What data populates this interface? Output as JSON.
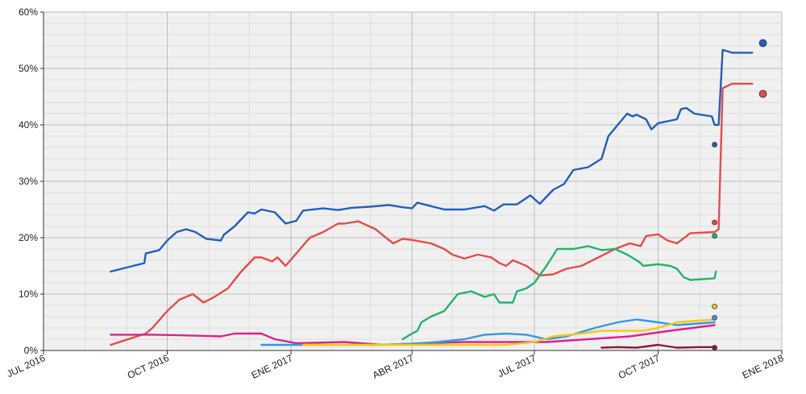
{
  "chart_data": {
    "type": "line",
    "title": "",
    "xlabel": "",
    "ylabel": "",
    "x_range": [
      "2016-07-01",
      "2018-01-01"
    ],
    "x_ticks": [
      {
        "date": "2016-07-01",
        "label": "JUL 2016"
      },
      {
        "date": "2016-10-01",
        "label": "OCT 2016"
      },
      {
        "date": "2017-01-01",
        "label": "ENE 2017"
      },
      {
        "date": "2017-04-01",
        "label": "ABR 2017"
      },
      {
        "date": "2017-07-01",
        "label": "JUL 2017"
      },
      {
        "date": "2017-10-01",
        "label": "OCT 2017"
      },
      {
        "date": "2018-01-01",
        "label": "ENE 2018"
      }
    ],
    "ylim": [
      0,
      60
    ],
    "y_ticks": [
      {
        "value": 0,
        "label": "0%"
      },
      {
        "value": 10,
        "label": "10%"
      },
      {
        "value": 20,
        "label": "20%"
      },
      {
        "value": 30,
        "label": "30%"
      },
      {
        "value": 40,
        "label": "40%"
      },
      {
        "value": 50,
        "label": "50%"
      },
      {
        "value": 60,
        "label": "60%"
      }
    ],
    "grid": true,
    "legend": "none",
    "series": [
      {
        "color": "#1f5fbf",
        "points": [
          [
            "2016-08-20",
            14
          ],
          [
            "2016-09-14",
            15.5
          ],
          [
            "2016-09-15",
            17.2
          ],
          [
            "2016-09-25",
            17.8
          ],
          [
            "2016-10-01",
            19.5
          ],
          [
            "2016-10-08",
            21
          ],
          [
            "2016-10-15",
            21.5
          ],
          [
            "2016-10-22",
            21
          ],
          [
            "2016-10-30",
            19.8
          ],
          [
            "2016-11-10",
            19.5
          ],
          [
            "2016-11-12",
            20.5
          ],
          [
            "2016-11-20",
            22
          ],
          [
            "2016-11-30",
            24.5
          ],
          [
            "2016-12-05",
            24.3
          ],
          [
            "2016-12-10",
            25
          ],
          [
            "2016-12-20",
            24.5
          ],
          [
            "2016-12-28",
            22.5
          ],
          [
            "2017-01-05",
            23
          ],
          [
            "2017-01-10",
            24.8
          ],
          [
            "2017-01-25",
            25.2
          ],
          [
            "2017-02-05",
            24.9
          ],
          [
            "2017-02-15",
            25.3
          ],
          [
            "2017-03-01",
            25.5
          ],
          [
            "2017-03-15",
            25.8
          ],
          [
            "2017-03-25",
            25.4
          ],
          [
            "2017-04-01",
            25.2
          ],
          [
            "2017-04-05",
            26.2
          ],
          [
            "2017-04-25",
            25
          ],
          [
            "2017-05-10",
            25
          ],
          [
            "2017-05-25",
            25.6
          ],
          [
            "2017-06-01",
            24.8
          ],
          [
            "2017-06-08",
            25.9
          ],
          [
            "2017-06-18",
            25.9
          ],
          [
            "2017-06-28",
            27.5
          ],
          [
            "2017-07-05",
            26
          ],
          [
            "2017-07-15",
            28.5
          ],
          [
            "2017-07-23",
            29.5
          ],
          [
            "2017-07-30",
            32
          ],
          [
            "2017-08-10",
            32.5
          ],
          [
            "2017-08-20",
            34
          ],
          [
            "2017-08-25",
            38
          ],
          [
            "2017-09-01",
            40
          ],
          [
            "2017-09-08",
            42
          ],
          [
            "2017-09-12",
            41.5
          ],
          [
            "2017-09-15",
            41.8
          ],
          [
            "2017-09-22",
            41
          ],
          [
            "2017-09-26",
            39.2
          ],
          [
            "2017-10-01",
            40.3
          ],
          [
            "2017-10-15",
            41
          ],
          [
            "2017-10-18",
            42.8
          ],
          [
            "2017-10-22",
            43
          ],
          [
            "2017-10-28",
            42
          ],
          [
            "2017-11-10",
            41.5
          ],
          [
            "2017-11-12",
            40
          ],
          [
            "2017-11-15",
            40
          ],
          [
            "2017-11-18",
            53.3
          ],
          [
            "2017-11-25",
            52.8
          ],
          [
            "2017-12-10",
            52.8
          ]
        ],
        "markers": [
          [
            "2017-11-12",
            36.5,
            6
          ],
          [
            "2017-12-18",
            54.5,
            9
          ]
        ]
      },
      {
        "color": "#e84a4a",
        "points": [
          [
            "2016-08-20",
            1
          ],
          [
            "2016-09-15",
            3
          ],
          [
            "2016-09-20",
            4
          ],
          [
            "2016-10-01",
            7
          ],
          [
            "2016-10-10",
            9
          ],
          [
            "2016-10-20",
            10
          ],
          [
            "2016-10-28",
            8.5
          ],
          [
            "2016-11-05",
            9.5
          ],
          [
            "2016-11-15",
            11
          ],
          [
            "2016-11-25",
            14
          ],
          [
            "2016-12-05",
            16.5
          ],
          [
            "2016-12-10",
            16.5
          ],
          [
            "2016-12-18",
            15.8
          ],
          [
            "2016-12-22",
            16.5
          ],
          [
            "2016-12-28",
            15
          ],
          [
            "2017-01-15",
            20
          ],
          [
            "2017-01-25",
            21
          ],
          [
            "2017-02-05",
            22.5
          ],
          [
            "2017-02-10",
            22.5
          ],
          [
            "2017-02-20",
            22.9
          ],
          [
            "2017-03-05",
            21.5
          ],
          [
            "2017-03-10",
            20.5
          ],
          [
            "2017-03-18",
            19
          ],
          [
            "2017-03-25",
            19.8
          ],
          [
            "2017-04-01",
            19.6
          ],
          [
            "2017-04-15",
            19
          ],
          [
            "2017-04-25",
            18
          ],
          [
            "2017-05-01",
            17
          ],
          [
            "2017-05-10",
            16.3
          ],
          [
            "2017-05-20",
            17
          ],
          [
            "2017-05-30",
            16.5
          ],
          [
            "2017-06-05",
            15.5
          ],
          [
            "2017-06-10",
            15
          ],
          [
            "2017-06-15",
            16
          ],
          [
            "2017-06-25",
            15
          ],
          [
            "2017-07-05",
            13.3
          ],
          [
            "2017-07-15",
            13.5
          ],
          [
            "2017-07-25",
            14.5
          ],
          [
            "2017-08-05",
            15
          ],
          [
            "2017-08-20",
            16.8
          ],
          [
            "2017-08-30",
            18
          ],
          [
            "2017-09-10",
            19
          ],
          [
            "2017-09-18",
            18.5
          ],
          [
            "2017-09-22",
            20.3
          ],
          [
            "2017-10-01",
            20.6
          ],
          [
            "2017-10-08",
            19.5
          ],
          [
            "2017-10-15",
            19
          ],
          [
            "2017-10-25",
            20.8
          ],
          [
            "2017-11-12",
            21
          ],
          [
            "2017-11-15",
            21.5
          ],
          [
            "2017-11-18",
            46.5
          ],
          [
            "2017-11-25",
            47.3
          ],
          [
            "2017-12-10",
            47.3
          ]
        ],
        "markers": [
          [
            "2017-11-12",
            22.7,
            6
          ],
          [
            "2017-12-18",
            45.5,
            9
          ]
        ]
      },
      {
        "color": "#1fb56b",
        "points": [
          [
            "2017-03-25",
            2
          ],
          [
            "2017-04-01",
            3
          ],
          [
            "2017-04-05",
            3.5
          ],
          [
            "2017-04-08",
            5
          ],
          [
            "2017-04-15",
            6
          ],
          [
            "2017-04-25",
            7
          ],
          [
            "2017-05-05",
            10
          ],
          [
            "2017-05-15",
            10.5
          ],
          [
            "2017-05-25",
            9.5
          ],
          [
            "2017-06-01",
            10
          ],
          [
            "2017-06-05",
            8.5
          ],
          [
            "2017-06-15",
            8.5
          ],
          [
            "2017-06-18",
            10.5
          ],
          [
            "2017-06-25",
            11
          ],
          [
            "2017-07-01",
            12
          ],
          [
            "2017-07-10",
            15
          ],
          [
            "2017-07-18",
            18
          ],
          [
            "2017-07-30",
            18
          ],
          [
            "2017-08-10",
            18.5
          ],
          [
            "2017-08-20",
            17.8
          ],
          [
            "2017-08-30",
            18
          ],
          [
            "2017-09-08",
            17
          ],
          [
            "2017-09-15",
            16
          ],
          [
            "2017-09-18",
            15.5
          ],
          [
            "2017-09-20",
            15
          ],
          [
            "2017-10-01",
            15.3
          ],
          [
            "2017-10-10",
            15
          ],
          [
            "2017-10-15",
            14.5
          ],
          [
            "2017-10-20",
            13
          ],
          [
            "2017-10-25",
            12.5
          ],
          [
            "2017-11-12",
            12.8
          ],
          [
            "2017-11-13",
            14
          ]
        ],
        "markers": [
          [
            "2017-11-12",
            20.3,
            6
          ]
        ]
      },
      {
        "color": "#e0208f",
        "points": [
          [
            "2016-08-20",
            2.8
          ],
          [
            "2016-09-20",
            2.8
          ],
          [
            "2016-10-10",
            2.7
          ],
          [
            "2016-11-10",
            2.5
          ],
          [
            "2016-11-20",
            3
          ],
          [
            "2016-12-10",
            3
          ],
          [
            "2016-12-20",
            2
          ],
          [
            "2017-01-05",
            1.3
          ],
          [
            "2017-02-10",
            1.5
          ],
          [
            "2017-03-10",
            1
          ],
          [
            "2017-04-10",
            1.3
          ],
          [
            "2017-05-10",
            1.5
          ],
          [
            "2017-06-10",
            1.5
          ],
          [
            "2017-07-10",
            1.5
          ],
          [
            "2017-08-10",
            2
          ],
          [
            "2017-09-10",
            2.5
          ],
          [
            "2017-10-10",
            3.5
          ],
          [
            "2017-11-12",
            4.5
          ]
        ],
        "markers": []
      },
      {
        "color": "#3399e6",
        "points": [
          [
            "2016-12-10",
            1
          ],
          [
            "2017-01-10",
            1
          ],
          [
            "2017-02-10",
            1
          ],
          [
            "2017-03-10",
            1
          ],
          [
            "2017-04-01",
            1.2
          ],
          [
            "2017-04-20",
            1.5
          ],
          [
            "2017-05-10",
            2
          ],
          [
            "2017-05-25",
            2.8
          ],
          [
            "2017-06-10",
            3
          ],
          [
            "2017-06-25",
            2.8
          ],
          [
            "2017-07-10",
            2
          ],
          [
            "2017-07-25",
            2.5
          ],
          [
            "2017-08-15",
            4
          ],
          [
            "2017-09-01",
            5
          ],
          [
            "2017-09-15",
            5.5
          ],
          [
            "2017-10-01",
            5
          ],
          [
            "2017-10-15",
            4.5
          ],
          [
            "2017-11-12",
            5
          ]
        ],
        "markers": [
          [
            "2017-11-12",
            5.8,
            6
          ]
        ]
      },
      {
        "color": "#f2c81a",
        "points": [
          [
            "2017-01-10",
            1
          ],
          [
            "2017-02-10",
            1
          ],
          [
            "2017-03-10",
            1
          ],
          [
            "2017-04-10",
            1
          ],
          [
            "2017-05-10",
            1
          ],
          [
            "2017-06-10",
            1
          ],
          [
            "2017-07-01",
            1.5
          ],
          [
            "2017-07-15",
            2.5
          ],
          [
            "2017-08-05",
            3
          ],
          [
            "2017-08-20",
            3.5
          ],
          [
            "2017-09-05",
            3.5
          ],
          [
            "2017-09-20",
            3.5
          ],
          [
            "2017-10-01",
            4
          ],
          [
            "2017-10-15",
            5
          ],
          [
            "2017-11-12",
            5.5
          ]
        ],
        "markers": [
          [
            "2017-11-12",
            7.8,
            6
          ]
        ]
      },
      {
        "color": "#8b1a3a",
        "points": [
          [
            "2017-08-20",
            0.5
          ],
          [
            "2017-09-01",
            0.6
          ],
          [
            "2017-09-15",
            0.5
          ],
          [
            "2017-10-01",
            1
          ],
          [
            "2017-10-15",
            0.5
          ],
          [
            "2017-11-01",
            0.6
          ],
          [
            "2017-11-12",
            0.6
          ]
        ],
        "markers": [
          [
            "2017-11-12",
            0.5,
            6
          ]
        ]
      }
    ]
  }
}
